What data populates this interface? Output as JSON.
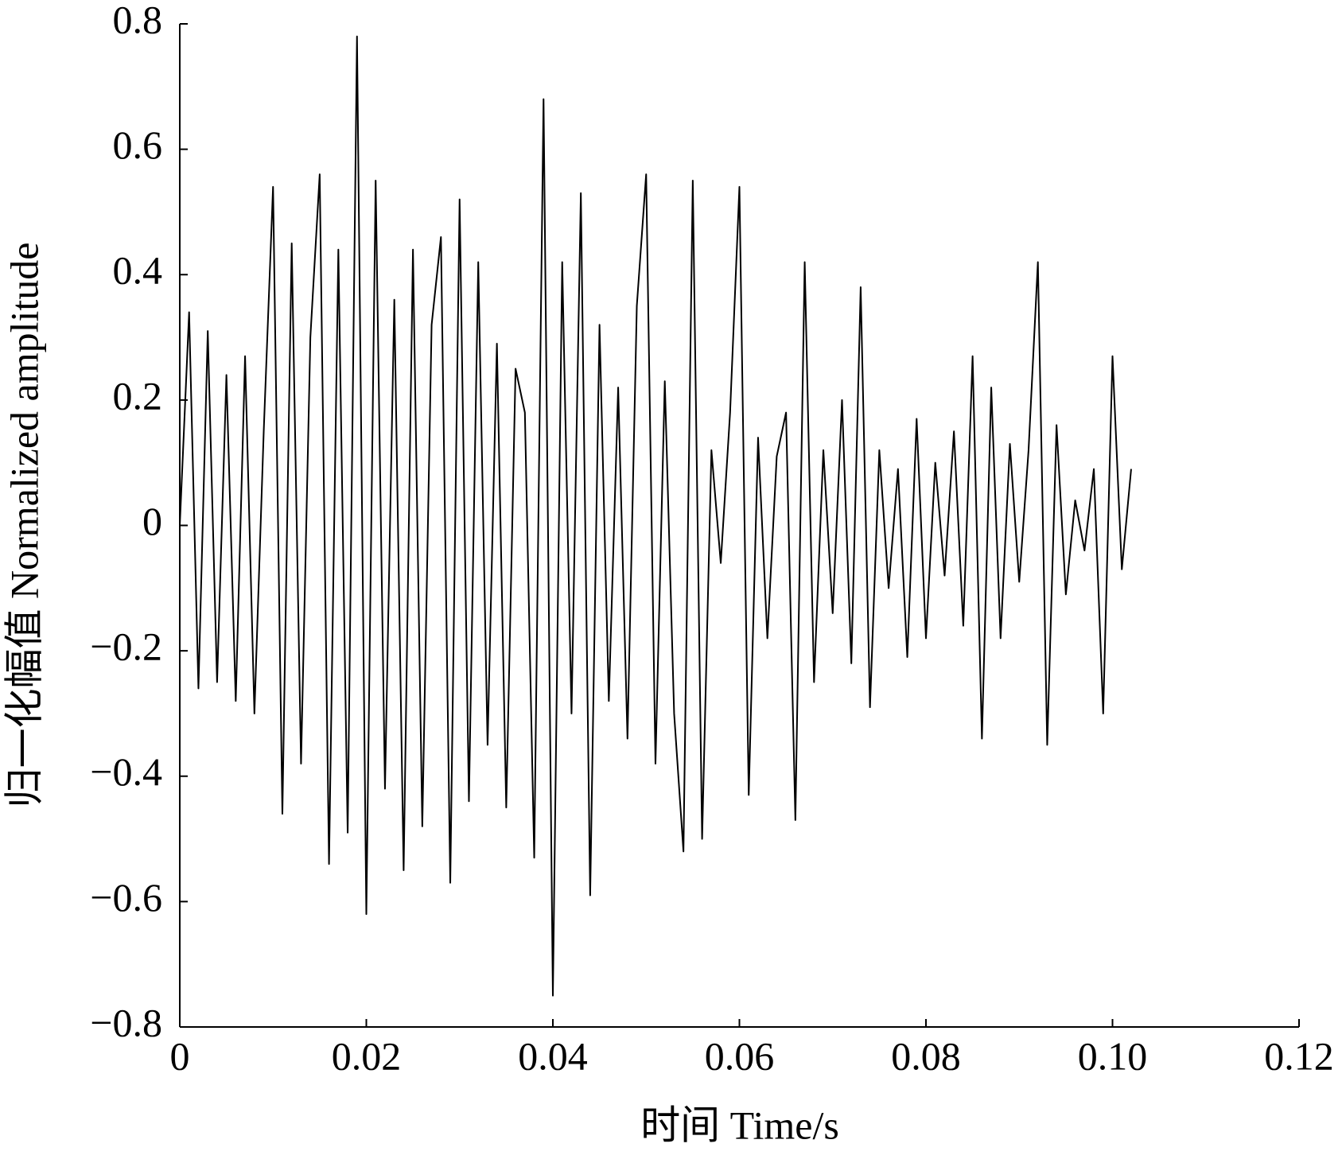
{
  "chart_data": {
    "type": "line",
    "x_label": "时间  Time/s",
    "y_label": "归一化幅值 Normalized amplitude",
    "x": [
      0,
      0.001,
      0.002,
      0.003,
      0.004,
      0.005,
      0.006,
      0.007,
      0.008,
      0.009,
      0.01,
      0.011,
      0.012,
      0.013,
      0.014,
      0.015,
      0.016,
      0.017,
      0.018,
      0.019,
      0.02,
      0.021,
      0.022,
      0.023,
      0.024,
      0.025,
      0.026,
      0.027,
      0.028,
      0.029,
      0.03,
      0.031,
      0.032,
      0.033,
      0.034,
      0.035,
      0.036,
      0.037,
      0.038,
      0.039,
      0.04,
      0.041,
      0.042,
      0.043,
      0.044,
      0.045,
      0.046,
      0.047,
      0.048,
      0.049,
      0.05,
      0.051,
      0.052,
      0.053,
      0.054,
      0.055,
      0.056,
      0.057,
      0.058,
      0.059,
      0.06,
      0.061,
      0.062,
      0.063,
      0.064,
      0.065,
      0.066,
      0.067,
      0.068,
      0.069,
      0.07,
      0.071,
      0.072,
      0.073,
      0.074,
      0.075,
      0.076,
      0.077,
      0.078,
      0.079,
      0.08,
      0.081,
      0.082,
      0.083,
      0.084,
      0.085,
      0.086,
      0.087,
      0.088,
      0.089,
      0.09,
      0.091,
      0.092,
      0.093,
      0.094,
      0.095,
      0.096,
      0.097,
      0.098,
      0.099,
      0.1,
      0.101,
      0.102
    ],
    "values": [
      0,
      0.34,
      -0.26,
      0.31,
      -0.25,
      0.24,
      -0.28,
      0.27,
      -0.3,
      0.15,
      0.54,
      -0.46,
      0.45,
      -0.38,
      0.3,
      0.56,
      -0.54,
      0.44,
      -0.49,
      0.78,
      -0.62,
      0.55,
      -0.42,
      0.36,
      -0.55,
      0.44,
      -0.48,
      0.32,
      0.46,
      -0.57,
      0.52,
      -0.44,
      0.42,
      -0.35,
      0.29,
      -0.45,
      0.25,
      0.18,
      -0.53,
      0.68,
      -0.75,
      0.42,
      -0.3,
      0.53,
      -0.59,
      0.32,
      -0.28,
      0.22,
      -0.34,
      0.35,
      0.56,
      -0.38,
      0.23,
      -0.3,
      -0.52,
      0.55,
      -0.5,
      0.12,
      -0.06,
      0.18,
      0.54,
      -0.43,
      0.14,
      -0.18,
      0.11,
      0.18,
      -0.47,
      0.42,
      -0.25,
      0.12,
      -0.14,
      0.2,
      -0.22,
      0.38,
      -0.29,
      0.12,
      -0.1,
      0.09,
      -0.21,
      0.17,
      -0.18,
      0.1,
      -0.08,
      0.15,
      -0.16,
      0.27,
      -0.34,
      0.22,
      -0.18,
      0.13,
      -0.09,
      0.12,
      0.42,
      -0.35,
      0.16,
      -0.11,
      0.04,
      -0.04,
      0.09,
      -0.3,
      0.27,
      -0.07,
      0.09
    ],
    "color": "#000000",
    "xlim": [
      0,
      0.12
    ],
    "xticks": [
      0,
      0.02,
      0.04,
      0.06,
      0.08,
      {
        "value": 0.1,
        "label": "0.10"
      },
      0.12
    ],
    "ylim": [
      -0.8,
      0.8
    ],
    "yticks": [
      {
        "value": -0.8,
        "label": "−0.8"
      },
      {
        "value": -0.6,
        "label": "−0.6"
      },
      {
        "value": -0.4,
        "label": "−0.4"
      },
      {
        "value": -0.2,
        "label": "−0.2"
      },
      0,
      0.2,
      0.4,
      0.6,
      0.8
    ],
    "grid": false
  }
}
